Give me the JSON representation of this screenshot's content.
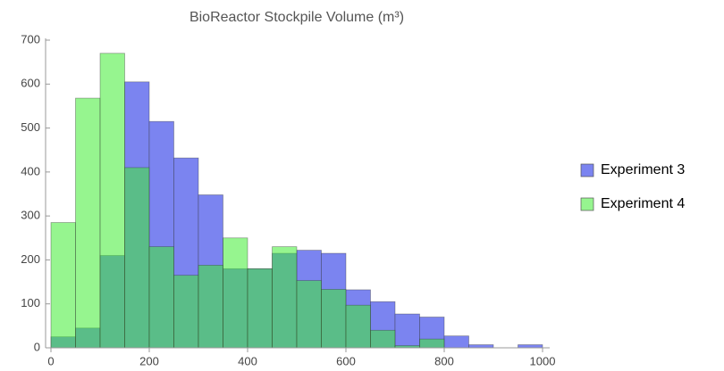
{
  "chart_data": {
    "type": "histogram",
    "title": "BioReactor Stockpile Volume (m³)",
    "bins": [
      0,
      50,
      100,
      150,
      200,
      250,
      300,
      350,
      400,
      450,
      500,
      550,
      600,
      650,
      700,
      750,
      800,
      850,
      900,
      950,
      1000
    ],
    "series": [
      {
        "name": "Experiment 3",
        "color": "#7b84f0",
        "values": [
          25,
          45,
          210,
          605,
          515,
          432,
          348,
          180,
          180,
          215,
          222,
          215,
          132,
          105,
          77,
          70,
          27,
          7,
          0,
          7
        ]
      },
      {
        "name": "Experiment 4",
        "color": "#3fed33",
        "opacity": 0.55,
        "values": [
          285,
          568,
          670,
          410,
          230,
          165,
          188,
          250,
          180,
          230,
          153,
          133,
          97,
          40,
          5,
          20,
          0,
          0,
          0,
          0
        ]
      }
    ],
    "xlim": [
      0,
      1000
    ],
    "xticks": [
      0,
      200,
      400,
      600,
      800,
      1000
    ],
    "ylim": [
      0,
      700
    ],
    "yticks": [
      0,
      100,
      200,
      300,
      400,
      500,
      600,
      700
    ],
    "legend": "right"
  }
}
